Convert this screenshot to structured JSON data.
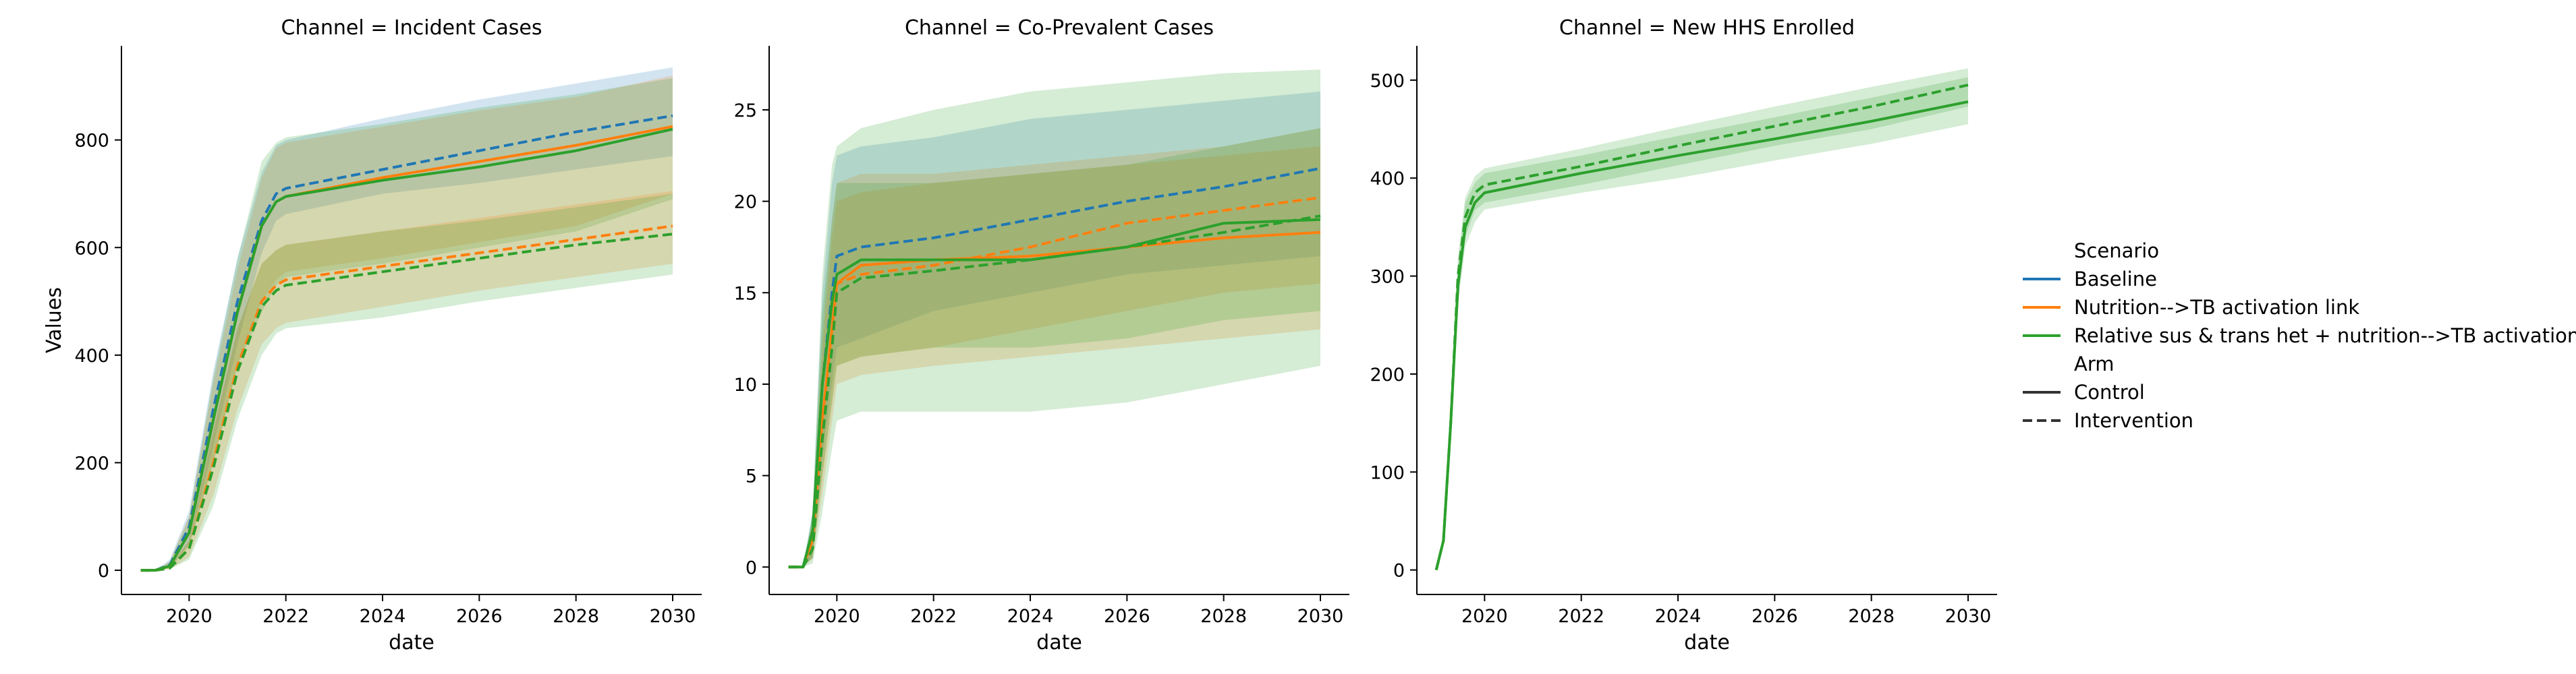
{
  "legend": {
    "scenario_title": "Scenario",
    "scenarios": [
      {
        "label": "Baseline",
        "color": "#1f77b4"
      },
      {
        "label": "Nutrition-->TB activation link",
        "color": "#ff7f0e"
      },
      {
        "label": "Relative sus & trans het + nutrition-->TB activation",
        "color": "#2ca02c"
      }
    ],
    "arm_title": "Arm",
    "arms": [
      {
        "label": "Control",
        "style": "solid"
      },
      {
        "label": "Intervention",
        "style": "dashed"
      }
    ],
    "placement": "right"
  },
  "chart_data": [
    {
      "type": "line",
      "title": "Channel = Incident Cases",
      "xlabel": "date",
      "ylabel": "Values",
      "xlim": [
        2018.6,
        2030.6
      ],
      "ylim": [
        -45,
        975
      ],
      "xticks": [
        2020,
        2022,
        2024,
        2026,
        2028,
        2030
      ],
      "xtick_labels": [
        "2020",
        "2022",
        "2024",
        "2026",
        "2028",
        "2030"
      ],
      "yticks": [
        0,
        200,
        400,
        600,
        800
      ],
      "ytick_labels": [
        "0",
        "200",
        "400",
        "600",
        "800"
      ],
      "grid": false,
      "series": [
        {
          "scenario": 0,
          "arm": "dashed",
          "x": [
            2019,
            2019.3,
            2019.6,
            2020,
            2020.5,
            2021,
            2021.5,
            2021.8,
            2022,
            2024,
            2026,
            2028,
            2030
          ],
          "y": [
            0,
            0,
            10,
            80,
            300,
            500,
            650,
            700,
            710,
            745,
            780,
            815,
            845
          ],
          "lower": [
            0,
            0,
            5,
            50,
            230,
            420,
            590,
            650,
            662,
            700,
            720,
            745,
            770
          ],
          "upper": [
            0,
            0,
            20,
            110,
            370,
            580,
            740,
            790,
            800,
            840,
            875,
            905,
            935
          ]
        },
        {
          "scenario": 1,
          "arm": "solid",
          "x": [
            2019,
            2019.3,
            2019.6,
            2020,
            2020.5,
            2021,
            2021.5,
            2021.8,
            2022,
            2024,
            2026,
            2028,
            2030
          ],
          "y": [
            0,
            0,
            8,
            70,
            280,
            480,
            640,
            685,
            695,
            730,
            760,
            790,
            825
          ],
          "lower": [
            0,
            0,
            4,
            45,
            200,
            380,
            500,
            540,
            555,
            580,
            610,
            640,
            700
          ],
          "upper": [
            0,
            0,
            16,
            100,
            350,
            560,
            730,
            785,
            795,
            825,
            855,
            880,
            920
          ]
        },
        {
          "scenario": 2,
          "arm": "solid",
          "x": [
            2019,
            2019.3,
            2019.6,
            2020,
            2020.5,
            2021,
            2021.5,
            2021.8,
            2022,
            2024,
            2026,
            2028,
            2030
          ],
          "y": [
            0,
            0,
            8,
            70,
            280,
            480,
            640,
            685,
            695,
            725,
            750,
            780,
            820
          ],
          "lower": [
            0,
            0,
            4,
            45,
            200,
            380,
            480,
            530,
            545,
            570,
            600,
            630,
            690
          ],
          "upper": [
            0,
            0,
            16,
            100,
            360,
            580,
            760,
            795,
            805,
            830,
            860,
            885,
            915
          ]
        },
        {
          "scenario": 1,
          "arm": "dashed",
          "x": [
            2019,
            2019.3,
            2019.6,
            2020,
            2020.5,
            2021,
            2021.5,
            2021.8,
            2022,
            2024,
            2026,
            2028,
            2030
          ],
          "y": [
            0,
            0,
            4,
            40,
            200,
            380,
            500,
            530,
            540,
            565,
            590,
            615,
            640
          ],
          "lower": [
            0,
            0,
            2,
            25,
            140,
            300,
            420,
            450,
            460,
            490,
            520,
            545,
            570
          ],
          "upper": [
            0,
            0,
            6,
            55,
            260,
            450,
            570,
            595,
            605,
            630,
            655,
            680,
            705
          ]
        },
        {
          "scenario": 2,
          "arm": "dashed",
          "x": [
            2019,
            2019.3,
            2019.6,
            2020,
            2020.5,
            2021,
            2021.5,
            2021.8,
            2022,
            2024,
            2026,
            2028,
            2030
          ],
          "y": [
            0,
            0,
            4,
            40,
            190,
            370,
            490,
            520,
            530,
            555,
            580,
            605,
            625
          ],
          "lower": [
            0,
            0,
            2,
            20,
            120,
            280,
            400,
            440,
            450,
            470,
            500,
            525,
            550
          ],
          "upper": [
            0,
            0,
            6,
            55,
            260,
            450,
            570,
            595,
            605,
            630,
            650,
            675,
            700
          ]
        }
      ]
    },
    {
      "type": "line",
      "title": "Channel = Co-Prevalent Cases",
      "xlabel": "date",
      "ylabel": "",
      "xlim": [
        2018.6,
        2030.6
      ],
      "ylim": [
        -1.5,
        28.5
      ],
      "xticks": [
        2020,
        2022,
        2024,
        2026,
        2028,
        2030
      ],
      "xtick_labels": [
        "2020",
        "2022",
        "2024",
        "2026",
        "2028",
        "2030"
      ],
      "yticks": [
        0,
        5,
        10,
        15,
        20,
        25
      ],
      "ytick_labels": [
        "0",
        "5",
        "10",
        "15",
        "20",
        "25"
      ],
      "grid": false,
      "series": [
        {
          "scenario": 0,
          "arm": "dashed",
          "x": [
            2019,
            2019.3,
            2019.5,
            2019.7,
            2019.9,
            2020,
            2020.5,
            2022,
            2024,
            2026,
            2028,
            2030
          ],
          "y": [
            0,
            0,
            2,
            10,
            15,
            17,
            17.5,
            18,
            19,
            20,
            20.8,
            21.8
          ],
          "lower": [
            0,
            0,
            0.5,
            6,
            10,
            12,
            12.5,
            14,
            15,
            16,
            16.5,
            17
          ],
          "upper": [
            0,
            0,
            3,
            15,
            21,
            22.5,
            23,
            23.5,
            24.5,
            25,
            25.5,
            26
          ]
        },
        {
          "scenario": 1,
          "arm": "dashed",
          "x": [
            2019,
            2019.3,
            2019.5,
            2019.7,
            2019.9,
            2020,
            2020.5,
            2022,
            2024,
            2026,
            2028,
            2030
          ],
          "y": [
            0,
            0,
            1.5,
            8,
            13,
            15.5,
            16,
            16.5,
            17.5,
            18.8,
            19.5,
            20.2
          ],
          "lower": [
            0,
            0,
            0.5,
            5,
            9,
            11,
            11.5,
            12,
            13,
            14,
            15,
            15.5
          ],
          "upper": [
            0,
            0,
            2.5,
            12,
            18,
            20,
            20.5,
            21,
            21.5,
            22,
            22.5,
            23
          ]
        },
        {
          "scenario": 1,
          "arm": "solid",
          "x": [
            2019,
            2019.3,
            2019.5,
            2019.7,
            2019.9,
            2020,
            2020.5,
            2022,
            2024,
            2026,
            2028,
            2030
          ],
          "y": [
            0,
            0,
            1.5,
            8,
            13,
            15.5,
            16.5,
            16.8,
            17,
            17.5,
            18,
            18.3
          ],
          "lower": [
            0,
            0,
            0.5,
            4,
            8,
            10,
            10.5,
            11,
            11.5,
            12,
            12.5,
            13
          ],
          "upper": [
            0,
            0,
            2.5,
            13,
            19,
            21,
            21.5,
            21.5,
            22,
            22.5,
            23,
            24
          ]
        },
        {
          "scenario": 2,
          "arm": "solid",
          "x": [
            2019,
            2019.3,
            2019.5,
            2019.7,
            2019.9,
            2020,
            2020.5,
            2022,
            2024,
            2026,
            2028,
            2030
          ],
          "y": [
            0,
            0,
            2,
            10,
            14.5,
            16,
            16.8,
            16.8,
            16.8,
            17.5,
            18.8,
            19
          ],
          "lower": [
            0,
            0,
            0.5,
            5,
            9,
            11,
            11.5,
            12,
            12,
            12.5,
            13.5,
            14
          ],
          "upper": [
            0,
            0,
            3,
            14,
            19,
            21,
            21,
            21,
            21.5,
            22,
            23,
            24
          ]
        },
        {
          "scenario": 2,
          "arm": "dashed",
          "x": [
            2019,
            2019.3,
            2019.5,
            2019.7,
            2019.9,
            2020,
            2020.5,
            2022,
            2024,
            2026,
            2028,
            2030
          ],
          "y": [
            0,
            0,
            1,
            7,
            12,
            15,
            15.8,
            16.2,
            16.8,
            17.5,
            18.3,
            19.2
          ],
          "lower": [
            0,
            0,
            0.2,
            3,
            6.5,
            8,
            8.5,
            8.5,
            8.5,
            9,
            10,
            11
          ],
          "upper": [
            0,
            0,
            3,
            16,
            22,
            23,
            24,
            25,
            26,
            26.5,
            27,
            27.2
          ]
        }
      ]
    },
    {
      "type": "line",
      "title": "Channel = New HHS Enrolled",
      "xlabel": "date",
      "ylabel": "",
      "xlim": [
        2018.6,
        2030.6
      ],
      "ylim": [
        -25,
        535
      ],
      "xticks": [
        2020,
        2022,
        2024,
        2026,
        2028,
        2030
      ],
      "xtick_labels": [
        "2020",
        "2022",
        "2024",
        "2026",
        "2028",
        "2030"
      ],
      "yticks": [
        0,
        100,
        200,
        300,
        400,
        500
      ],
      "ytick_labels": [
        "0",
        "100",
        "200",
        "300",
        "400",
        "500"
      ],
      "grid": false,
      "series": [
        {
          "scenario": 2,
          "arm": "solid",
          "x": [
            2019,
            2019.15,
            2019.3,
            2019.45,
            2019.6,
            2019.8,
            2020,
            2022,
            2024,
            2026,
            2028,
            2030
          ],
          "y": [
            0,
            30,
            150,
            290,
            350,
            375,
            385,
            405,
            423,
            440,
            458,
            478
          ],
          "lower": [
            0,
            25,
            130,
            270,
            330,
            355,
            368,
            385,
            400,
            418,
            435,
            455
          ],
          "upper": [
            0,
            35,
            170,
            310,
            375,
            395,
            405,
            423,
            443,
            462,
            482,
            503
          ]
        },
        {
          "scenario": 2,
          "arm": "dashed",
          "x": [
            2019,
            2019.15,
            2019.3,
            2019.45,
            2019.6,
            2019.8,
            2020,
            2022,
            2024,
            2026,
            2028,
            2030
          ],
          "y": [
            0,
            30,
            150,
            300,
            360,
            385,
            393,
            412,
            433,
            453,
            473,
            495
          ],
          "lower": [
            0,
            25,
            130,
            280,
            340,
            367,
            375,
            393,
            413,
            433,
            450,
            473
          ],
          "upper": [
            0,
            35,
            170,
            320,
            380,
            402,
            410,
            430,
            452,
            473,
            493,
            512
          ]
        }
      ]
    }
  ]
}
